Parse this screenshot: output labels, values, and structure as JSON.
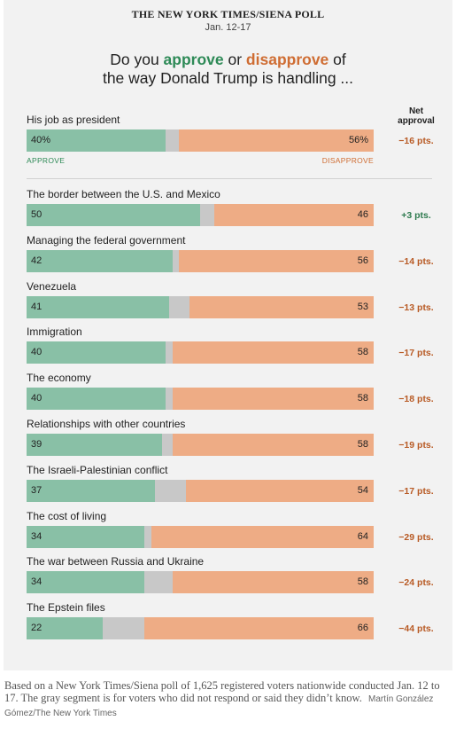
{
  "header": {
    "poll_name": "THE NEW YORK TIMES/SIENA POLL",
    "dates": "Jan. 12-17"
  },
  "headline": {
    "part1": "Do you ",
    "approve_word": "approve",
    "part2": " or ",
    "disapprove_word": "disapprove",
    "part3": " of",
    "line2": "the way Donald Trump is handling ..."
  },
  "net_header": {
    "line1": "Net",
    "line2": "approval"
  },
  "legend": {
    "approve": "APPROVE",
    "disapprove": "DISAPPROVE"
  },
  "colors": {
    "approve": "#89c0a6",
    "neutral": "#c8c8c8",
    "disapprove": "#eeac85",
    "net_negative": "#b85a24",
    "net_positive": "#2e7a4f"
  },
  "chart_data": {
    "type": "bar",
    "orientation": "horizontal",
    "stacked": true,
    "xlim": [
      0,
      100
    ],
    "categories": [
      "His job as president",
      "The border between the U.S. and Mexico",
      "Managing the federal government",
      "Venezuela",
      "Immigration",
      "The economy",
      "Relationships with other countries",
      "The Israeli-Palestinian conflict",
      "The cost of living",
      "The war between Russia and Ukraine",
      "The Epstein files"
    ],
    "series": [
      {
        "name": "APPROVE",
        "values": [
          40,
          50,
          42,
          41,
          40,
          40,
          39,
          37,
          34,
          34,
          22
        ]
      },
      {
        "name": "DISAPPROVE",
        "values": [
          56,
          46,
          56,
          53,
          58,
          58,
          58,
          54,
          64,
          58,
          66
        ]
      }
    ],
    "approve_labels": [
      "40%",
      "50",
      "42",
      "41",
      "40",
      "40",
      "39",
      "37",
      "34",
      "34",
      "22"
    ],
    "disapprove_labels": [
      "56%",
      "46",
      "56",
      "53",
      "58",
      "58",
      "58",
      "54",
      "64",
      "58",
      "66"
    ],
    "net_approval": [
      "−16 pts.",
      "+3 pts.",
      "−14 pts.",
      "−13 pts.",
      "−17 pts.",
      "−18 pts.",
      "−19 pts.",
      "−17 pts.",
      "−29 pts.",
      "−24 pts.",
      "−44 pts."
    ]
  },
  "footnote": {
    "text": "Based on a New York Times/Siena poll of 1,625 registered voters nationwide conducted Jan. 12 to 17.  The gray segment is for voters who did not respond or said they didn’t know.",
    "credit": "Martín González Gómez/The New York Times"
  }
}
